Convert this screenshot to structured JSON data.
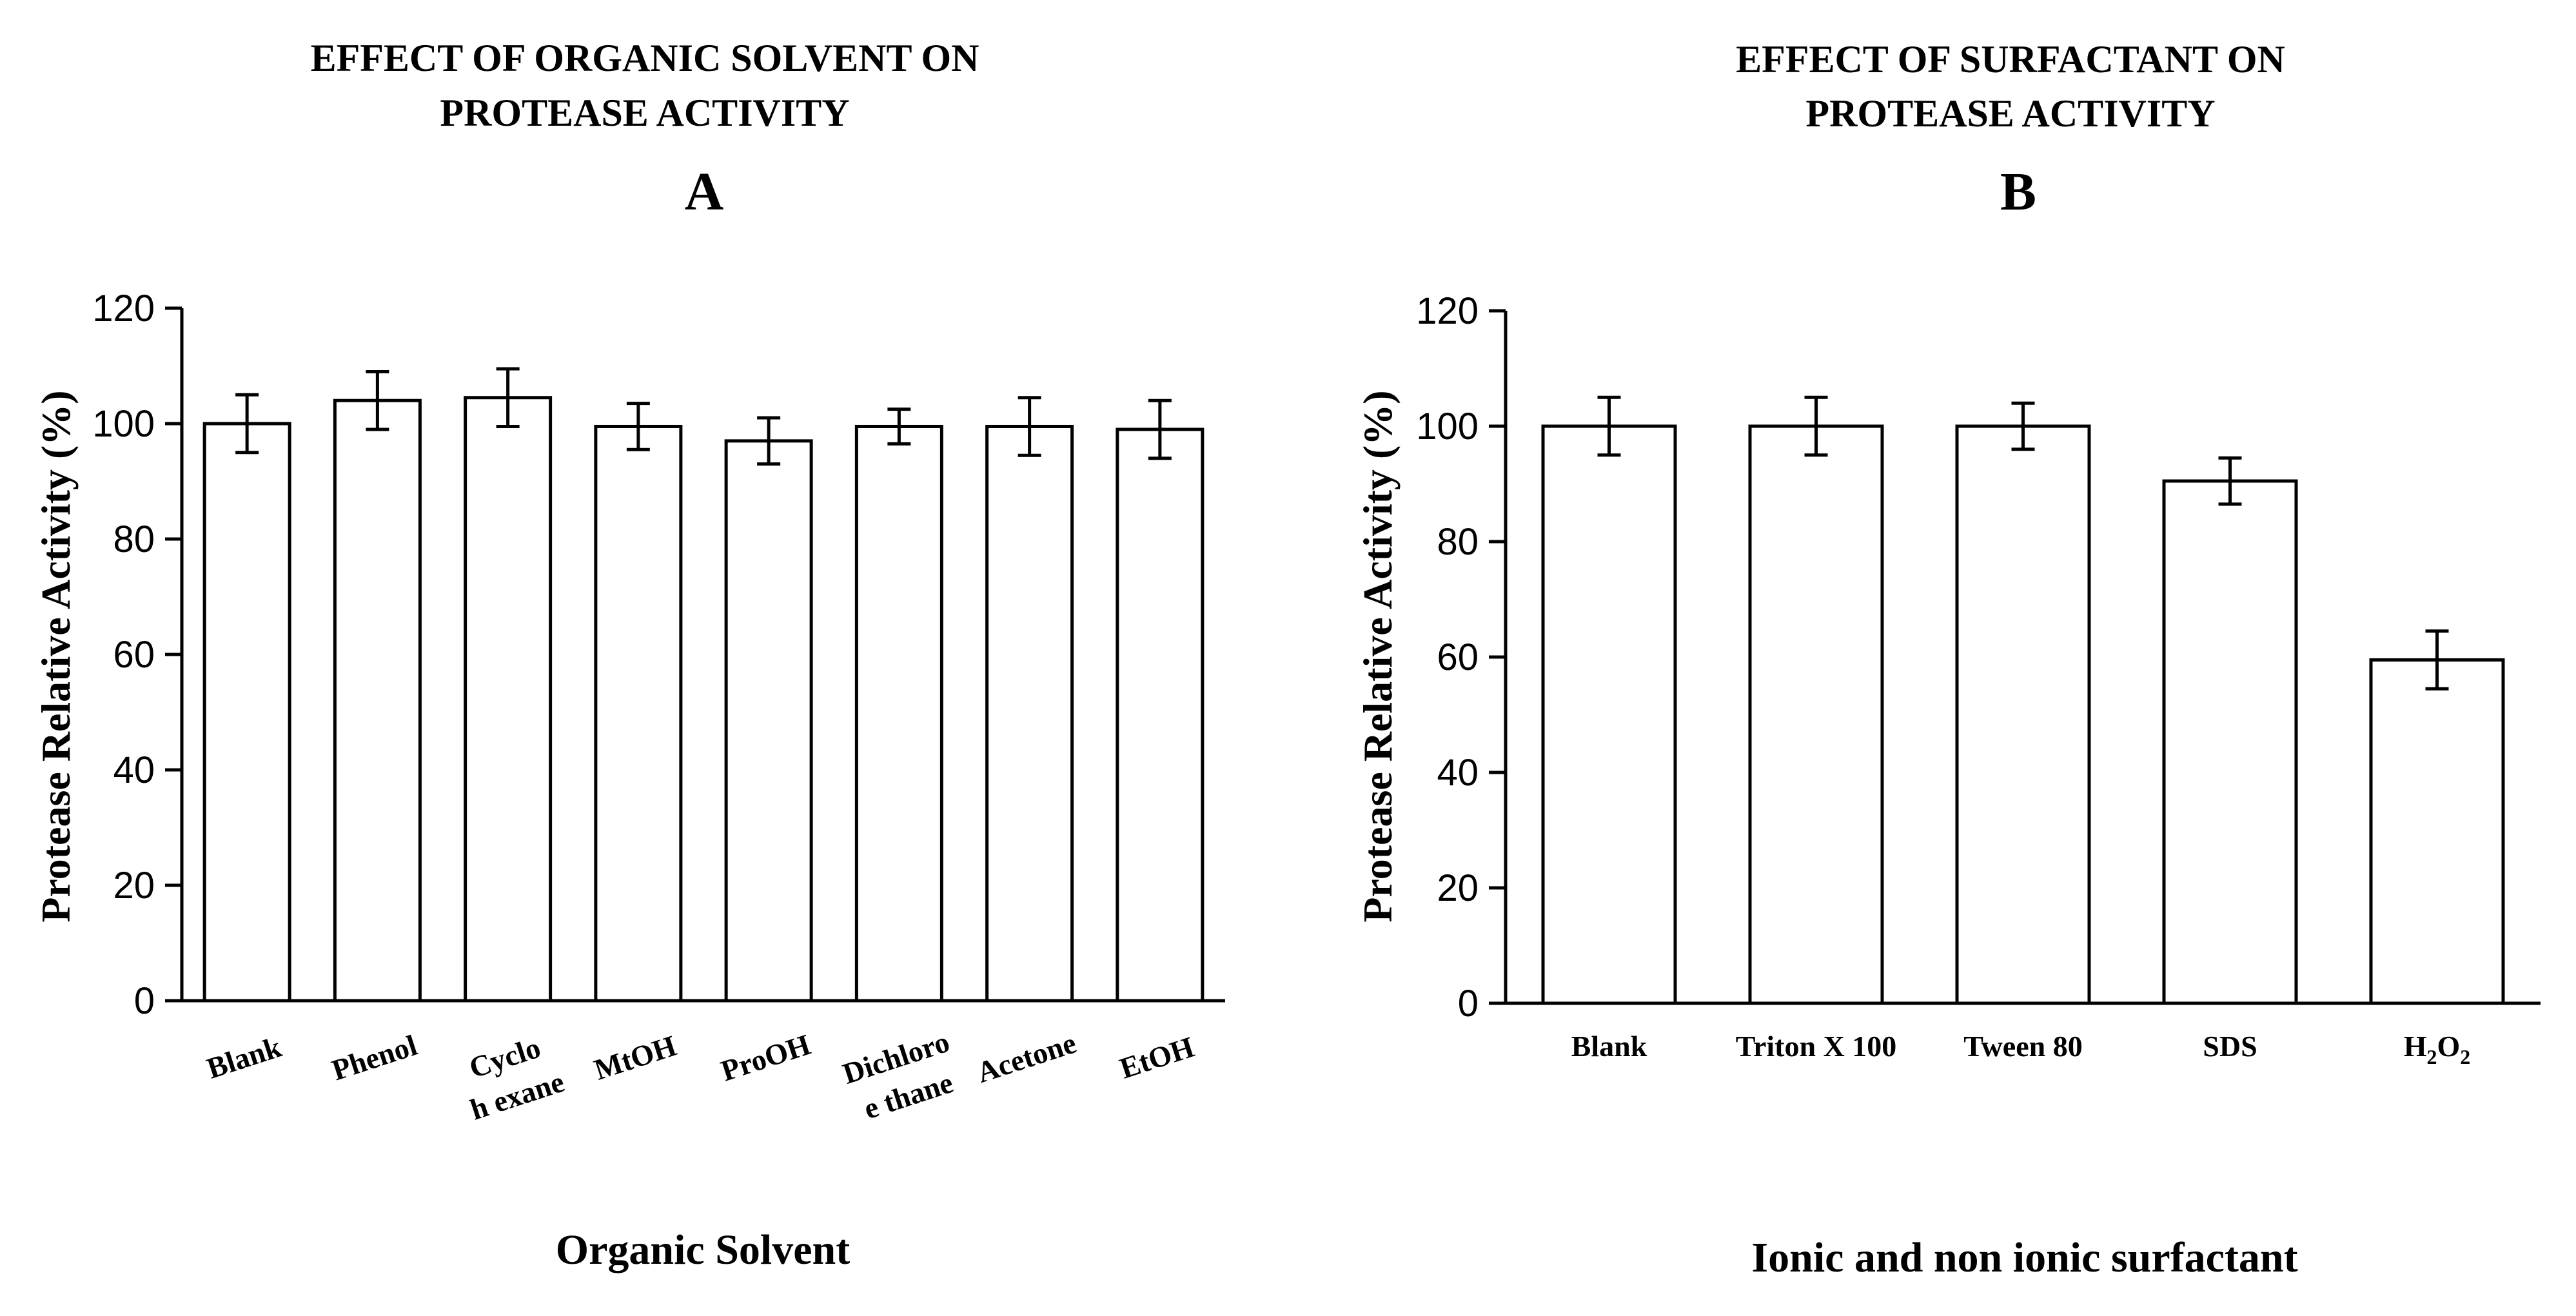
{
  "chart_data": [
    {
      "type": "bar",
      "title_line1": "EFFECT OF ORGANIC SOLVENT ON",
      "title_line2": "PROTEASE ACTIVITY",
      "panel_letter": "A",
      "xlabel": "Organic Solvent",
      "ylabel": "Protease Relative Activity (%)",
      "ylim": [
        0,
        120
      ],
      "yticks": [
        "0",
        "20",
        "40",
        "60",
        "80",
        "100",
        "120"
      ],
      "categories": [
        "Blank",
        "Phenol",
        "Cyclo hexane",
        "MtOH",
        "ProOH",
        "Dichloro e thane",
        "Acetone",
        "EtOH"
      ],
      "category_lines": [
        [
          "Blank"
        ],
        [
          "Phenol"
        ],
        [
          "Cyclo",
          "h exane"
        ],
        [
          "MtOH"
        ],
        [
          "ProOH"
        ],
        [
          "Dichloro",
          "e thane"
        ],
        [
          "Acetone"
        ],
        [
          "EtOH"
        ]
      ],
      "values": [
        100,
        104,
        104.5,
        99.5,
        97,
        99.5,
        99.5,
        99
      ],
      "errors": [
        5,
        5,
        5,
        4,
        4,
        3,
        5,
        5
      ],
      "grid": false,
      "legend": "none",
      "label_rotation": "tilted"
    },
    {
      "type": "bar",
      "title_line1": "EFFECT OF SURFACTANT ON",
      "title_line2": "PROTEASE ACTIVITY",
      "panel_letter": "B",
      "xlabel": "Ionic and non ionic surfactant",
      "ylabel": "Protease Relative Activity (%)",
      "ylim": [
        0,
        120
      ],
      "yticks": [
        "0",
        "20",
        "40",
        "60",
        "80",
        "100",
        "120"
      ],
      "categories": [
        "Blank",
        "Triton X 100",
        "Tween 80",
        "SDS",
        "H2O2"
      ],
      "category_lines": [
        [
          "Blank"
        ],
        [
          "Triton X 100"
        ],
        [
          "Tween 80"
        ],
        [
          "SDS"
        ],
        [
          "H2O2"
        ]
      ],
      "values": [
        100,
        100,
        100,
        90.5,
        59.5
      ],
      "errors": [
        5,
        5,
        4,
        4,
        5
      ],
      "grid": false,
      "legend": "none",
      "label_rotation": "horizontal"
    }
  ]
}
